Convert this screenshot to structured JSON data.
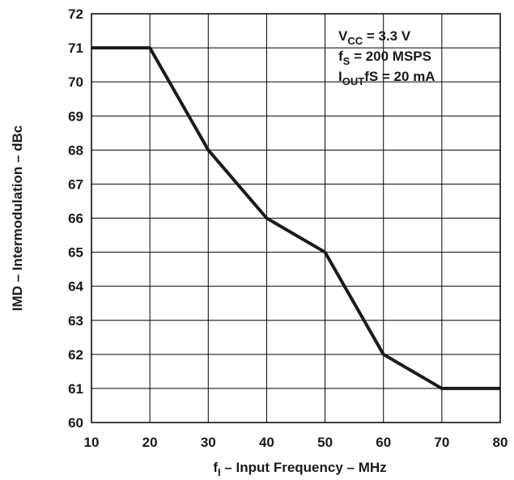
{
  "chart_data": {
    "type": "line",
    "title": "",
    "xlabel": {
      "main": "f",
      "sub": "I",
      "rest": " – Input Frequency – MHz"
    },
    "ylabel": "IMD – Intermodulation – dBc",
    "xlim": [
      10,
      80
    ],
    "ylim": [
      60,
      72
    ],
    "xticks": [
      10,
      20,
      30,
      40,
      50,
      60,
      70,
      80
    ],
    "yticks": [
      60,
      61,
      62,
      63,
      64,
      65,
      66,
      67,
      68,
      69,
      70,
      71,
      72
    ],
    "grid": true,
    "series": [
      {
        "x": [
          10,
          20,
          30,
          40,
          50,
          60,
          70,
          80
        ],
        "y": [
          71,
          71,
          68,
          66,
          65,
          62,
          61,
          61
        ]
      }
    ],
    "annotations": [
      {
        "main": "V",
        "sub": "CC",
        "rest": " = 3.3 V"
      },
      {
        "main": "f",
        "sub": "S",
        "rest": " = 200 MSPS"
      },
      {
        "main": "I",
        "sub": "OUT",
        "rest": "fS = 20 mA"
      }
    ],
    "line_color": "#1a1a1a",
    "grid_color": "#000000"
  }
}
